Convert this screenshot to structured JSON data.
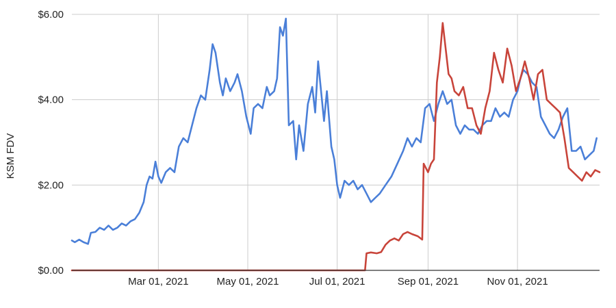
{
  "chart_data": {
    "type": "line",
    "ylabel": "KSM FDV",
    "ylim": [
      0,
      6
    ],
    "y_ticks": [
      {
        "value": 0,
        "label": "$0.00"
      },
      {
        "value": 2,
        "label": "$2.00"
      },
      {
        "value": 4,
        "label": "$4.00"
      },
      {
        "value": 6,
        "label": "$6.00"
      }
    ],
    "xlim": [
      "2021-01-01",
      "2021-12-27"
    ],
    "x_ticks": [
      {
        "date": "2021-03-01",
        "label": "Mar 01, 2021"
      },
      {
        "date": "2021-05-01",
        "label": "May 01, 2021"
      },
      {
        "date": "2021-07-01",
        "label": "Jul 01, 2021"
      },
      {
        "date": "2021-09-01",
        "label": "Sep 01, 2021"
      },
      {
        "date": "2021-11-01",
        "label": "Nov 01, 2021"
      }
    ],
    "grid": true,
    "series": [
      {
        "color": "#4a7fd8",
        "points": [
          [
            "2021-01-01",
            0.7
          ],
          [
            "2021-01-03",
            0.66
          ],
          [
            "2021-01-06",
            0.72
          ],
          [
            "2021-01-09",
            0.66
          ],
          [
            "2021-01-12",
            0.62
          ],
          [
            "2021-01-14",
            0.88
          ],
          [
            "2021-01-17",
            0.9
          ],
          [
            "2021-01-20",
            1.0
          ],
          [
            "2021-01-23",
            0.95
          ],
          [
            "2021-01-26",
            1.05
          ],
          [
            "2021-01-29",
            0.95
          ],
          [
            "2021-02-01",
            1.0
          ],
          [
            "2021-02-04",
            1.1
          ],
          [
            "2021-02-07",
            1.05
          ],
          [
            "2021-02-10",
            1.15
          ],
          [
            "2021-02-13",
            1.2
          ],
          [
            "2021-02-16",
            1.35
          ],
          [
            "2021-02-19",
            1.6
          ],
          [
            "2021-02-21",
            2.0
          ],
          [
            "2021-02-23",
            2.2
          ],
          [
            "2021-02-25",
            2.15
          ],
          [
            "2021-02-27",
            2.55
          ],
          [
            "2021-03-01",
            2.2
          ],
          [
            "2021-03-03",
            2.05
          ],
          [
            "2021-03-06",
            2.3
          ],
          [
            "2021-03-09",
            2.4
          ],
          [
            "2021-03-12",
            2.3
          ],
          [
            "2021-03-15",
            2.9
          ],
          [
            "2021-03-18",
            3.1
          ],
          [
            "2021-03-21",
            3.0
          ],
          [
            "2021-03-24",
            3.4
          ],
          [
            "2021-03-27",
            3.8
          ],
          [
            "2021-03-30",
            4.1
          ],
          [
            "2021-04-02",
            4.0
          ],
          [
            "2021-04-05",
            4.7
          ],
          [
            "2021-04-07",
            5.3
          ],
          [
            "2021-04-09",
            5.1
          ],
          [
            "2021-04-12",
            4.4
          ],
          [
            "2021-04-14",
            4.1
          ],
          [
            "2021-04-16",
            4.5
          ],
          [
            "2021-04-19",
            4.2
          ],
          [
            "2021-04-22",
            4.4
          ],
          [
            "2021-04-24",
            4.6
          ],
          [
            "2021-04-27",
            4.2
          ],
          [
            "2021-04-30",
            3.6
          ],
          [
            "2021-05-03",
            3.2
          ],
          [
            "2021-05-05",
            3.8
          ],
          [
            "2021-05-08",
            3.9
          ],
          [
            "2021-05-11",
            3.8
          ],
          [
            "2021-05-14",
            4.3
          ],
          [
            "2021-05-16",
            4.1
          ],
          [
            "2021-05-19",
            4.2
          ],
          [
            "2021-05-21",
            4.5
          ],
          [
            "2021-05-23",
            5.7
          ],
          [
            "2021-05-25",
            5.5
          ],
          [
            "2021-05-27",
            5.9
          ],
          [
            "2021-05-29",
            3.4
          ],
          [
            "2021-06-01",
            3.5
          ],
          [
            "2021-06-03",
            2.6
          ],
          [
            "2021-06-05",
            3.4
          ],
          [
            "2021-06-08",
            2.8
          ],
          [
            "2021-06-11",
            3.9
          ],
          [
            "2021-06-14",
            4.3
          ],
          [
            "2021-06-16",
            3.7
          ],
          [
            "2021-06-18",
            4.9
          ],
          [
            "2021-06-20",
            4.2
          ],
          [
            "2021-06-22",
            3.5
          ],
          [
            "2021-06-24",
            4.2
          ],
          [
            "2021-06-27",
            2.9
          ],
          [
            "2021-06-29",
            2.6
          ],
          [
            "2021-07-01",
            2.0
          ],
          [
            "2021-07-03",
            1.7
          ],
          [
            "2021-07-06",
            2.1
          ],
          [
            "2021-07-09",
            2.0
          ],
          [
            "2021-07-12",
            2.1
          ],
          [
            "2021-07-15",
            1.9
          ],
          [
            "2021-07-18",
            2.0
          ],
          [
            "2021-07-21",
            1.8
          ],
          [
            "2021-07-24",
            1.6
          ],
          [
            "2021-07-27",
            1.7
          ],
          [
            "2021-07-30",
            1.8
          ],
          [
            "2021-08-03",
            2.0
          ],
          [
            "2021-08-07",
            2.2
          ],
          [
            "2021-08-11",
            2.5
          ],
          [
            "2021-08-15",
            2.8
          ],
          [
            "2021-08-18",
            3.1
          ],
          [
            "2021-08-21",
            2.9
          ],
          [
            "2021-08-24",
            3.1
          ],
          [
            "2021-08-27",
            3.0
          ],
          [
            "2021-08-30",
            3.8
          ],
          [
            "2021-09-02",
            3.9
          ],
          [
            "2021-09-05",
            3.5
          ],
          [
            "2021-09-08",
            3.9
          ],
          [
            "2021-09-11",
            4.2
          ],
          [
            "2021-09-14",
            3.9
          ],
          [
            "2021-09-17",
            4.0
          ],
          [
            "2021-09-20",
            3.4
          ],
          [
            "2021-09-23",
            3.2
          ],
          [
            "2021-09-26",
            3.4
          ],
          [
            "2021-09-29",
            3.3
          ],
          [
            "2021-10-02",
            3.3
          ],
          [
            "2021-10-05",
            3.2
          ],
          [
            "2021-10-08",
            3.4
          ],
          [
            "2021-10-11",
            3.5
          ],
          [
            "2021-10-14",
            3.5
          ],
          [
            "2021-10-17",
            3.8
          ],
          [
            "2021-10-20",
            3.6
          ],
          [
            "2021-10-23",
            3.7
          ],
          [
            "2021-10-26",
            3.6
          ],
          [
            "2021-10-29",
            4.0
          ],
          [
            "2021-11-01",
            4.2
          ],
          [
            "2021-11-03",
            4.5
          ],
          [
            "2021-11-05",
            4.7
          ],
          [
            "2021-11-08",
            4.6
          ],
          [
            "2021-11-11",
            4.4
          ],
          [
            "2021-11-14",
            4.3
          ],
          [
            "2021-11-17",
            3.6
          ],
          [
            "2021-11-20",
            3.4
          ],
          [
            "2021-11-23",
            3.2
          ],
          [
            "2021-11-26",
            3.1
          ],
          [
            "2021-11-29",
            3.3
          ],
          [
            "2021-12-02",
            3.6
          ],
          [
            "2021-12-05",
            3.8
          ],
          [
            "2021-12-08",
            2.8
          ],
          [
            "2021-12-11",
            2.8
          ],
          [
            "2021-12-14",
            2.9
          ],
          [
            "2021-12-17",
            2.6
          ],
          [
            "2021-12-20",
            2.7
          ],
          [
            "2021-12-23",
            2.8
          ],
          [
            "2021-12-25",
            3.1
          ]
        ]
      },
      {
        "color": "#c8443a",
        "points": [
          [
            "2021-01-01",
            0.0
          ],
          [
            "2021-07-20",
            0.0
          ],
          [
            "2021-07-21",
            0.4
          ],
          [
            "2021-07-24",
            0.42
          ],
          [
            "2021-07-28",
            0.4
          ],
          [
            "2021-07-31",
            0.43
          ],
          [
            "2021-08-03",
            0.6
          ],
          [
            "2021-08-06",
            0.7
          ],
          [
            "2021-08-09",
            0.75
          ],
          [
            "2021-08-12",
            0.7
          ],
          [
            "2021-08-15",
            0.85
          ],
          [
            "2021-08-18",
            0.9
          ],
          [
            "2021-08-21",
            0.85
          ],
          [
            "2021-08-25",
            0.8
          ],
          [
            "2021-08-28",
            0.72
          ],
          [
            "2021-08-29",
            2.5
          ],
          [
            "2021-09-01",
            2.3
          ],
          [
            "2021-09-03",
            2.5
          ],
          [
            "2021-09-05",
            2.6
          ],
          [
            "2021-09-07",
            4.4
          ],
          [
            "2021-09-09",
            5.0
          ],
          [
            "2021-09-11",
            5.8
          ],
          [
            "2021-09-13",
            5.2
          ],
          [
            "2021-09-15",
            4.6
          ],
          [
            "2021-09-17",
            4.5
          ],
          [
            "2021-09-19",
            4.2
          ],
          [
            "2021-09-22",
            4.1
          ],
          [
            "2021-09-25",
            4.3
          ],
          [
            "2021-09-28",
            3.8
          ],
          [
            "2021-10-01",
            3.8
          ],
          [
            "2021-10-04",
            3.4
          ],
          [
            "2021-10-07",
            3.2
          ],
          [
            "2021-10-10",
            3.8
          ],
          [
            "2021-10-13",
            4.2
          ],
          [
            "2021-10-16",
            5.1
          ],
          [
            "2021-10-19",
            4.7
          ],
          [
            "2021-10-22",
            4.4
          ],
          [
            "2021-10-25",
            5.2
          ],
          [
            "2021-10-28",
            4.8
          ],
          [
            "2021-10-31",
            4.2
          ],
          [
            "2021-11-03",
            4.5
          ],
          [
            "2021-11-06",
            4.9
          ],
          [
            "2021-11-09",
            4.5
          ],
          [
            "2021-11-12",
            4.0
          ],
          [
            "2021-11-15",
            4.6
          ],
          [
            "2021-11-18",
            4.7
          ],
          [
            "2021-11-21",
            4.0
          ],
          [
            "2021-11-24",
            3.9
          ],
          [
            "2021-11-27",
            3.8
          ],
          [
            "2021-11-30",
            3.7
          ],
          [
            "2021-12-03",
            3.1
          ],
          [
            "2021-12-06",
            2.4
          ],
          [
            "2021-12-09",
            2.3
          ],
          [
            "2021-12-12",
            2.2
          ],
          [
            "2021-12-15",
            2.1
          ],
          [
            "2021-12-18",
            2.3
          ],
          [
            "2021-12-21",
            2.2
          ],
          [
            "2021-12-24",
            2.35
          ],
          [
            "2021-12-27",
            2.3
          ]
        ]
      }
    ]
  }
}
